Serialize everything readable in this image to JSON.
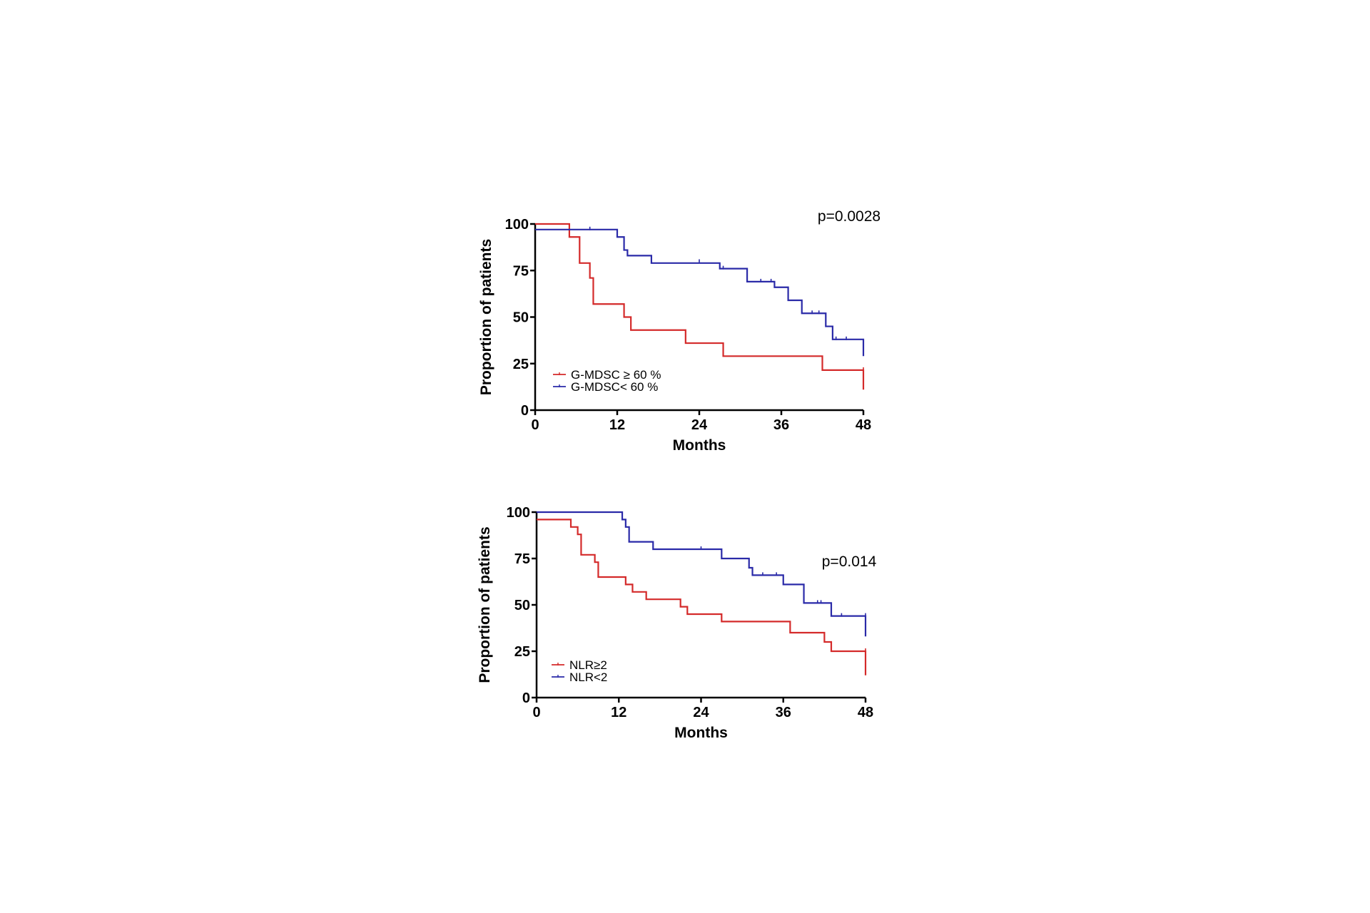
{
  "chart_data": [
    {
      "type": "line",
      "step": true,
      "annotation": "p=0.0028",
      "xlabel": "Months",
      "ylabel": "Proportion of patients",
      "xlim": [
        0,
        48
      ],
      "ylim": [
        0,
        100
      ],
      "xticks": [
        "0",
        "12",
        "24",
        "36",
        "48"
      ],
      "yticks": [
        "0",
        "25",
        "50",
        "75",
        "100"
      ],
      "legend_position": "bottom-left",
      "series": [
        {
          "name": "G-MDSC ≥ 60 %",
          "color": "#d42a2a",
          "x": [
            0,
            5,
            6.5,
            8,
            8.5,
            13,
            14,
            22,
            27.5,
            42,
            48
          ],
          "y": [
            100,
            93,
            79,
            71,
            57,
            50,
            43,
            36,
            29,
            21.5,
            11
          ],
          "censored_x": [
            48
          ],
          "censored_y": [
            21.5
          ]
        },
        {
          "name": "G-MDSC< 60 %",
          "color": "#2a2aa8",
          "x": [
            0,
            12,
            13,
            13.5,
            17,
            27,
            31,
            35,
            37,
            39,
            42.5,
            43.5,
            48
          ],
          "y": [
            97,
            93,
            86,
            83,
            79,
            76,
            69,
            66,
            59,
            52,
            45,
            38,
            29
          ],
          "censored_x": [
            8,
            24,
            27.5,
            33,
            34.5,
            40.5,
            41.5,
            44,
            45.5
          ],
          "censored_y": [
            97,
            79.5,
            76,
            69,
            69,
            52,
            52,
            38,
            38
          ]
        }
      ]
    },
    {
      "type": "line",
      "step": true,
      "annotation": "p=0.014",
      "xlabel": "Months",
      "ylabel": "Proportion of patients",
      "xlim": [
        0,
        48
      ],
      "ylim": [
        0,
        100
      ],
      "xticks": [
        "0",
        "12",
        "24",
        "36",
        "48"
      ],
      "yticks": [
        "0",
        "25",
        "50",
        "75",
        "100"
      ],
      "legend_position": "bottom-left",
      "series": [
        {
          "name": "NLR≥2",
          "color": "#d42a2a",
          "x": [
            0,
            5,
            6,
            6.5,
            8.5,
            9,
            13,
            14,
            16,
            21,
            22,
            27,
            37,
            42,
            43,
            48
          ],
          "y": [
            96,
            92,
            88,
            77,
            73,
            65,
            61,
            57,
            53,
            49,
            45,
            41,
            35,
            30,
            25,
            12
          ],
          "censored_x": [
            48
          ],
          "censored_y": [
            25
          ]
        },
        {
          "name": "NLR<2",
          "color": "#2a2aa8",
          "x": [
            0,
            12.5,
            13,
            13.5,
            17,
            27,
            31,
            31.5,
            36,
            39,
            43,
            48
          ],
          "y": [
            100,
            96,
            92,
            84,
            80,
            75,
            70,
            66,
            61,
            51,
            44,
            33
          ],
          "censored_x": [
            24,
            33,
            35,
            41,
            41.5,
            44.5,
            48
          ],
          "censored_y": [
            80,
            66,
            66,
            51,
            51,
            44,
            44
          ]
        }
      ]
    }
  ]
}
